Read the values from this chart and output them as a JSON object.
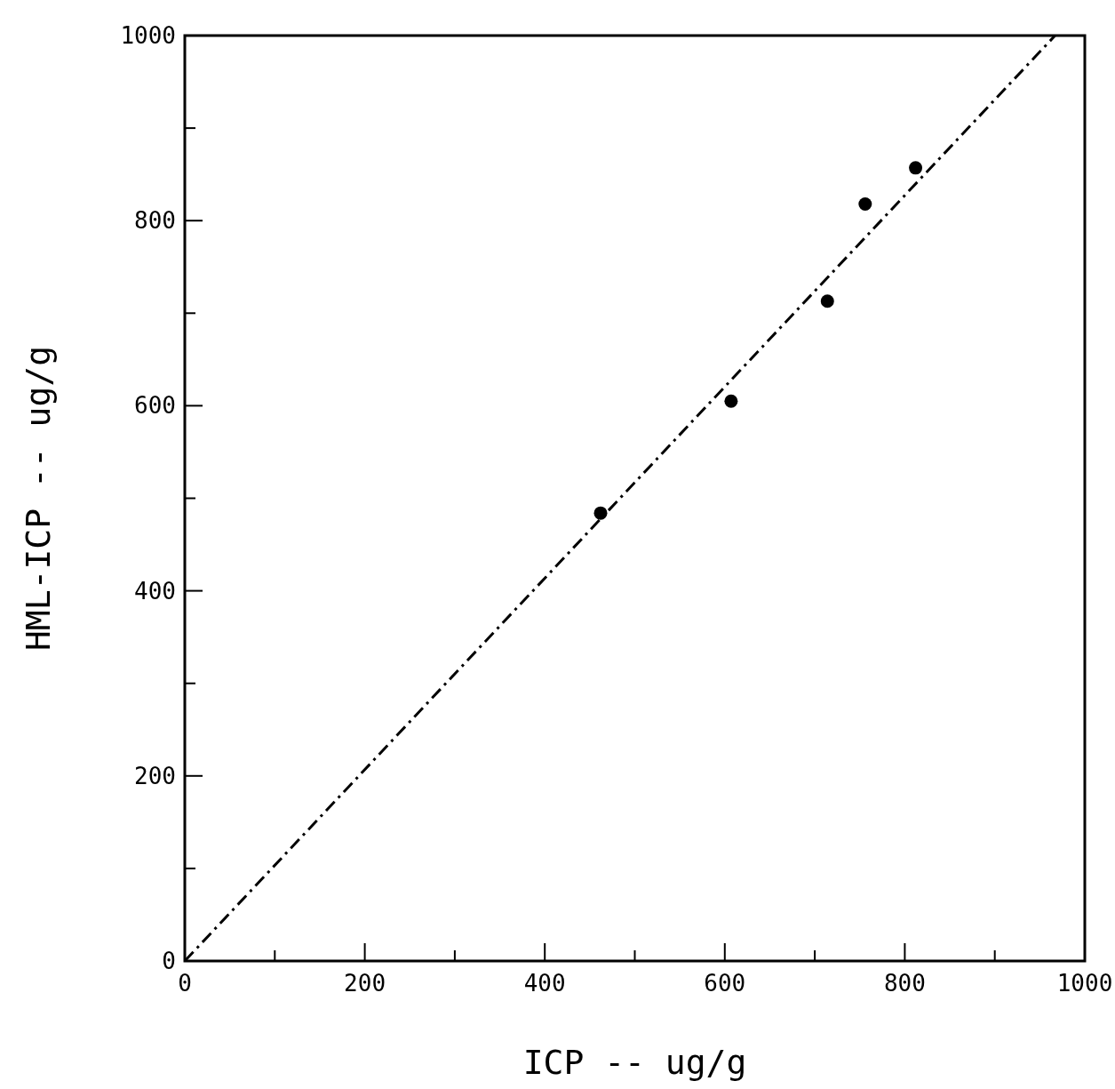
{
  "chart_data": {
    "type": "scatter",
    "xlabel": "ICP -- ug/g",
    "ylabel": "HML-ICP -- ug/g",
    "xlim": [
      0,
      1000
    ],
    "ylim": [
      0,
      1000
    ],
    "xticks": [
      0,
      {
        "value": 100,
        "label": null
      },
      200,
      {
        "value": 300,
        "label": null
      },
      400,
      {
        "value": 500,
        "label": null
      },
      600,
      {
        "value": 700,
        "label": null
      },
      800,
      {
        "value": 900,
        "label": null
      },
      1000
    ],
    "yticks": [
      0,
      {
        "value": 100,
        "label": null
      },
      200,
      {
        "value": 300,
        "label": null
      },
      400,
      {
        "value": 500,
        "label": null
      },
      600,
      {
        "value": 700,
        "label": null
      },
      800,
      {
        "value": 900,
        "label": null
      },
      1000
    ],
    "grid": false,
    "marker": "circle",
    "series": [
      {
        "color": "#000000",
        "x": [
          462,
          607,
          714,
          756,
          812
        ],
        "values": [
          484,
          605,
          713,
          818,
          857
        ]
      },
      {
        "type": "line",
        "color": "#000000",
        "line_style": "dashed",
        "marker": "none",
        "x": [
          0,
          967
        ],
        "values": [
          0,
          1000
        ]
      }
    ]
  }
}
